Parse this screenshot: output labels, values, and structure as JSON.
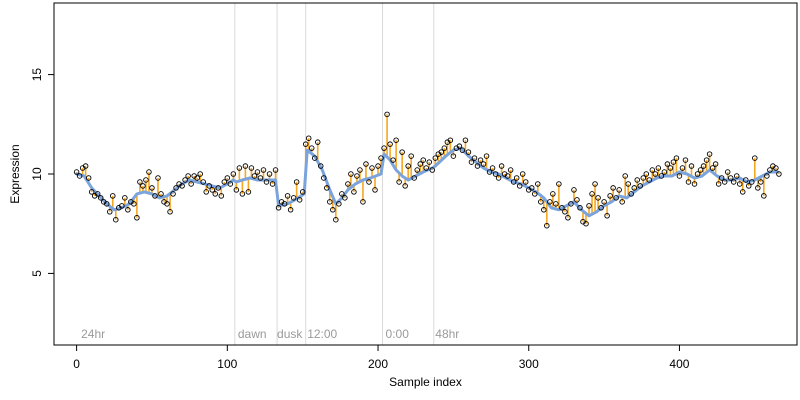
{
  "chart_data": {
    "type": "scatter",
    "title": "",
    "xlabel": "Sample index",
    "ylabel": "Expression",
    "xlim": [
      -15,
      478
    ],
    "ylim": [
      1.4,
      18.6
    ],
    "x_ticks": [
      0,
      100,
      200,
      300,
      400
    ],
    "x_tick_labels": [
      "0",
      "100",
      "200",
      "300",
      "400"
    ],
    "y_ticks": [
      5,
      10,
      15
    ],
    "y_tick_labels": [
      "5",
      "10",
      "15"
    ],
    "grid": false,
    "legend": "none",
    "vlines": [
      105,
      133,
      152,
      203,
      237
    ],
    "annotations": [
      {
        "x": 3,
        "text": "24hr"
      },
      {
        "x": 107,
        "text": "dawn"
      },
      {
        "x": 133,
        "text": "dusk"
      },
      {
        "x": 153,
        "text": "12:00"
      },
      {
        "x": 205,
        "text": "0:00"
      },
      {
        "x": 238,
        "text": "48hr"
      }
    ],
    "colors": {
      "fitted_line": "#7ba3dc",
      "residual_segments": "#f5a623",
      "vlines": "#d9d9d9",
      "points_edge": "#000000",
      "annotation_text": "#9a9a9a"
    },
    "fitted": [
      [
        0,
        10.0
      ],
      [
        5,
        9.9
      ],
      [
        10,
        9.3
      ],
      [
        15,
        8.9
      ],
      [
        20,
        8.5
      ],
      [
        25,
        8.2
      ],
      [
        30,
        8.3
      ],
      [
        35,
        8.5
      ],
      [
        40,
        9.0
      ],
      [
        45,
        9.1
      ],
      [
        50,
        9.0
      ],
      [
        55,
        8.8
      ],
      [
        60,
        8.9
      ],
      [
        65,
        9.2
      ],
      [
        70,
        9.5
      ],
      [
        75,
        9.7
      ],
      [
        80,
        9.6
      ],
      [
        85,
        9.5
      ],
      [
        90,
        9.4
      ],
      [
        95,
        9.3
      ],
      [
        100,
        9.5
      ],
      [
        104,
        9.7
      ],
      [
        106,
        9.6
      ],
      [
        110,
        9.7
      ],
      [
        115,
        9.8
      ],
      [
        120,
        9.7
      ],
      [
        125,
        9.7
      ],
      [
        132,
        9.7
      ],
      [
        134,
        8.4
      ],
      [
        140,
        8.5
      ],
      [
        145,
        8.7
      ],
      [
        151,
        9.0
      ],
      [
        153,
        11.2
      ],
      [
        158,
        10.9
      ],
      [
        163,
        10.2
      ],
      [
        168,
        9.2
      ],
      [
        172,
        8.5
      ],
      [
        176,
        8.8
      ],
      [
        180,
        9.2
      ],
      [
        185,
        9.5
      ],
      [
        190,
        9.7
      ],
      [
        195,
        9.8
      ],
      [
        202,
        10.0
      ],
      [
        204,
        11.0
      ],
      [
        208,
        10.7
      ],
      [
        212,
        10.2
      ],
      [
        216,
        9.9
      ],
      [
        220,
        9.7
      ],
      [
        225,
        9.9
      ],
      [
        230,
        10.1
      ],
      [
        236,
        10.3
      ],
      [
        238,
        10.4
      ],
      [
        245,
        10.9
      ],
      [
        250,
        11.2
      ],
      [
        255,
        11.3
      ],
      [
        260,
        10.9
      ],
      [
        265,
        10.6
      ],
      [
        270,
        10.3
      ],
      [
        275,
        10.1
      ],
      [
        280,
        10.0
      ],
      [
        285,
        9.8
      ],
      [
        290,
        9.6
      ],
      [
        295,
        9.5
      ],
      [
        300,
        9.3
      ],
      [
        305,
        9.1
      ],
      [
        310,
        8.8
      ],
      [
        315,
        8.3
      ],
      [
        320,
        8.2
      ],
      [
        325,
        8.4
      ],
      [
        330,
        8.6
      ],
      [
        335,
        8.2
      ],
      [
        340,
        7.9
      ],
      [
        345,
        8.1
      ],
      [
        350,
        8.4
      ],
      [
        355,
        8.6
      ],
      [
        360,
        8.9
      ],
      [
        365,
        8.8
      ],
      [
        370,
        9.1
      ],
      [
        375,
        9.4
      ],
      [
        380,
        9.6
      ],
      [
        385,
        9.8
      ],
      [
        390,
        9.9
      ],
      [
        395,
        9.9
      ],
      [
        400,
        10.1
      ],
      [
        405,
        10.0
      ],
      [
        410,
        9.8
      ],
      [
        415,
        9.9
      ],
      [
        420,
        10.2
      ],
      [
        425,
        9.9
      ],
      [
        430,
        9.7
      ],
      [
        435,
        9.7
      ],
      [
        440,
        9.8
      ],
      [
        445,
        9.6
      ],
      [
        450,
        9.7
      ],
      [
        455,
        9.9
      ],
      [
        460,
        10.1
      ],
      [
        465,
        10.1
      ]
    ],
    "points": [
      [
        0,
        10.1
      ],
      [
        2,
        9.9
      ],
      [
        4,
        10.3
      ],
      [
        6,
        10.4
      ],
      [
        8,
        9.8
      ],
      [
        10,
        9.1
      ],
      [
        12,
        8.9
      ],
      [
        14,
        9.0
      ],
      [
        16,
        8.8
      ],
      [
        18,
        8.6
      ],
      [
        20,
        8.5
      ],
      [
        22,
        8.1
      ],
      [
        24,
        8.9
      ],
      [
        26,
        7.7
      ],
      [
        28,
        8.3
      ],
      [
        30,
        8.4
      ],
      [
        32,
        8.8
      ],
      [
        34,
        8.2
      ],
      [
        36,
        8.6
      ],
      [
        38,
        8.5
      ],
      [
        40,
        7.8
      ],
      [
        42,
        9.6
      ],
      [
        44,
        9.4
      ],
      [
        46,
        9.7
      ],
      [
        48,
        10.1
      ],
      [
        50,
        9.3
      ],
      [
        52,
        8.9
      ],
      [
        54,
        9.8
      ],
      [
        56,
        9.0
      ],
      [
        58,
        8.6
      ],
      [
        60,
        8.5
      ],
      [
        62,
        8.1
      ],
      [
        64,
        9.0
      ],
      [
        66,
        9.3
      ],
      [
        68,
        9.5
      ],
      [
        70,
        9.4
      ],
      [
        72,
        9.7
      ],
      [
        74,
        9.9
      ],
      [
        76,
        9.5
      ],
      [
        78,
        9.9
      ],
      [
        80,
        9.8
      ],
      [
        82,
        10.0
      ],
      [
        84,
        9.6
      ],
      [
        86,
        9.1
      ],
      [
        88,
        9.4
      ],
      [
        90,
        9.2
      ],
      [
        92,
        9.0
      ],
      [
        94,
        9.3
      ],
      [
        96,
        8.9
      ],
      [
        98,
        9.6
      ],
      [
        100,
        9.8
      ],
      [
        102,
        9.5
      ],
      [
        104,
        10.0
      ],
      [
        106,
        9.2
      ],
      [
        108,
        10.3
      ],
      [
        110,
        9.0
      ],
      [
        112,
        10.4
      ],
      [
        114,
        9.1
      ],
      [
        116,
        10.3
      ],
      [
        118,
        9.9
      ],
      [
        120,
        10.1
      ],
      [
        122,
        9.8
      ],
      [
        124,
        10.2
      ],
      [
        126,
        9.6
      ],
      [
        128,
        10.0
      ],
      [
        130,
        9.5
      ],
      [
        132,
        10.2
      ],
      [
        134,
        8.3
      ],
      [
        136,
        8.6
      ],
      [
        138,
        8.5
      ],
      [
        140,
        8.9
      ],
      [
        142,
        8.2
      ],
      [
        144,
        8.8
      ],
      [
        146,
        9.6
      ],
      [
        148,
        8.7
      ],
      [
        150,
        9.1
      ],
      [
        152,
        11.5
      ],
      [
        154,
        11.8
      ],
      [
        156,
        11.3
      ],
      [
        158,
        10.8
      ],
      [
        160,
        11.6
      ],
      [
        162,
        10.4
      ],
      [
        164,
        9.8
      ],
      [
        166,
        9.3
      ],
      [
        168,
        8.6
      ],
      [
        170,
        8.2
      ],
      [
        172,
        7.7
      ],
      [
        174,
        8.5
      ],
      [
        176,
        9.0
      ],
      [
        178,
        8.8
      ],
      [
        180,
        9.5
      ],
      [
        182,
        10.0
      ],
      [
        184,
        9.1
      ],
      [
        186,
        9.9
      ],
      [
        188,
        10.2
      ],
      [
        190,
        8.6
      ],
      [
        192,
        10.5
      ],
      [
        194,
        9.6
      ],
      [
        196,
        10.3
      ],
      [
        198,
        9.2
      ],
      [
        200,
        10.4
      ],
      [
        202,
        10.8
      ],
      [
        204,
        11.3
      ],
      [
        206,
        13.0
      ],
      [
        208,
        11.5
      ],
      [
        210,
        10.7
      ],
      [
        212,
        11.7
      ],
      [
        214,
        9.6
      ],
      [
        216,
        11.1
      ],
      [
        218,
        9.4
      ],
      [
        220,
        10.4
      ],
      [
        222,
        10.9
      ],
      [
        224,
        9.8
      ],
      [
        226,
        10.2
      ],
      [
        228,
        10.5
      ],
      [
        230,
        10.7
      ],
      [
        232,
        10.3
      ],
      [
        234,
        10.6
      ],
      [
        236,
        10.2
      ],
      [
        238,
        10.8
      ],
      [
        240,
        11.0
      ],
      [
        242,
        11.1
      ],
      [
        244,
        11.3
      ],
      [
        246,
        11.6
      ],
      [
        248,
        11.7
      ],
      [
        250,
        10.9
      ],
      [
        252,
        11.3
      ],
      [
        254,
        11.4
      ],
      [
        256,
        11.2
      ],
      [
        258,
        11.7
      ],
      [
        260,
        11.1
      ],
      [
        262,
        10.6
      ],
      [
        264,
        10.8
      ],
      [
        266,
        10.4
      ],
      [
        268,
        10.7
      ],
      [
        270,
        10.5
      ],
      [
        272,
        10.9
      ],
      [
        274,
        10.1
      ],
      [
        276,
        10.3
      ],
      [
        278,
        10.0
      ],
      [
        280,
        9.8
      ],
      [
        282,
        10.4
      ],
      [
        284,
        10.0
      ],
      [
        286,
        9.9
      ],
      [
        288,
        10.2
      ],
      [
        290,
        9.6
      ],
      [
        292,
        9.8
      ],
      [
        294,
        9.4
      ],
      [
        296,
        10.0
      ],
      [
        298,
        9.6
      ],
      [
        300,
        9.2
      ],
      [
        302,
        9.3
      ],
      [
        304,
        9.0
      ],
      [
        306,
        9.5
      ],
      [
        308,
        8.6
      ],
      [
        310,
        8.2
      ],
      [
        312,
        7.4
      ],
      [
        314,
        8.6
      ],
      [
        316,
        9.0
      ],
      [
        318,
        8.5
      ],
      [
        320,
        9.5
      ],
      [
        322,
        8.3
      ],
      [
        324,
        8.1
      ],
      [
        326,
        7.8
      ],
      [
        328,
        8.5
      ],
      [
        330,
        9.2
      ],
      [
        332,
        8.7
      ],
      [
        334,
        8.3
      ],
      [
        336,
        7.6
      ],
      [
        338,
        7.5
      ],
      [
        340,
        8.4
      ],
      [
        342,
        9.0
      ],
      [
        344,
        9.5
      ],
      [
        346,
        8.8
      ],
      [
        348,
        8.3
      ],
      [
        350,
        8.6
      ],
      [
        352,
        7.9
      ],
      [
        354,
        8.9
      ],
      [
        356,
        9.3
      ],
      [
        358,
        8.8
      ],
      [
        360,
        9.2
      ],
      [
        362,
        8.6
      ],
      [
        364,
        9.9
      ],
      [
        366,
        9.5
      ],
      [
        368,
        9.0
      ],
      [
        370,
        9.3
      ],
      [
        372,
        9.7
      ],
      [
        374,
        9.4
      ],
      [
        376,
        9.8
      ],
      [
        378,
        10.0
      ],
      [
        380,
        9.7
      ],
      [
        382,
        10.2
      ],
      [
        384,
        10.0
      ],
      [
        386,
        10.3
      ],
      [
        388,
        9.9
      ],
      [
        390,
        10.1
      ],
      [
        392,
        10.5
      ],
      [
        394,
        10.3
      ],
      [
        396,
        10.6
      ],
      [
        398,
        10.8
      ],
      [
        400,
        9.9
      ],
      [
        402,
        10.3
      ],
      [
        404,
        10.7
      ],
      [
        406,
        9.6
      ],
      [
        408,
        10.4
      ],
      [
        410,
        9.5
      ],
      [
        412,
        10.0
      ],
      [
        414,
        10.2
      ],
      [
        416,
        10.4
      ],
      [
        418,
        10.7
      ],
      [
        420,
        11.0
      ],
      [
        422,
        10.3
      ],
      [
        424,
        10.5
      ],
      [
        426,
        9.5
      ],
      [
        428,
        9.8
      ],
      [
        430,
        9.6
      ],
      [
        432,
        10.1
      ],
      [
        434,
        9.8
      ],
      [
        436,
        9.6
      ],
      [
        438,
        9.9
      ],
      [
        440,
        9.5
      ],
      [
        442,
        9.1
      ],
      [
        444,
        9.7
      ],
      [
        446,
        9.4
      ],
      [
        448,
        9.6
      ],
      [
        450,
        10.8
      ],
      [
        452,
        9.3
      ],
      [
        454,
        9.6
      ],
      [
        456,
        8.9
      ],
      [
        458,
        9.9
      ],
      [
        460,
        10.2
      ],
      [
        462,
        10.4
      ],
      [
        464,
        10.3
      ],
      [
        466,
        10.0
      ]
    ]
  }
}
